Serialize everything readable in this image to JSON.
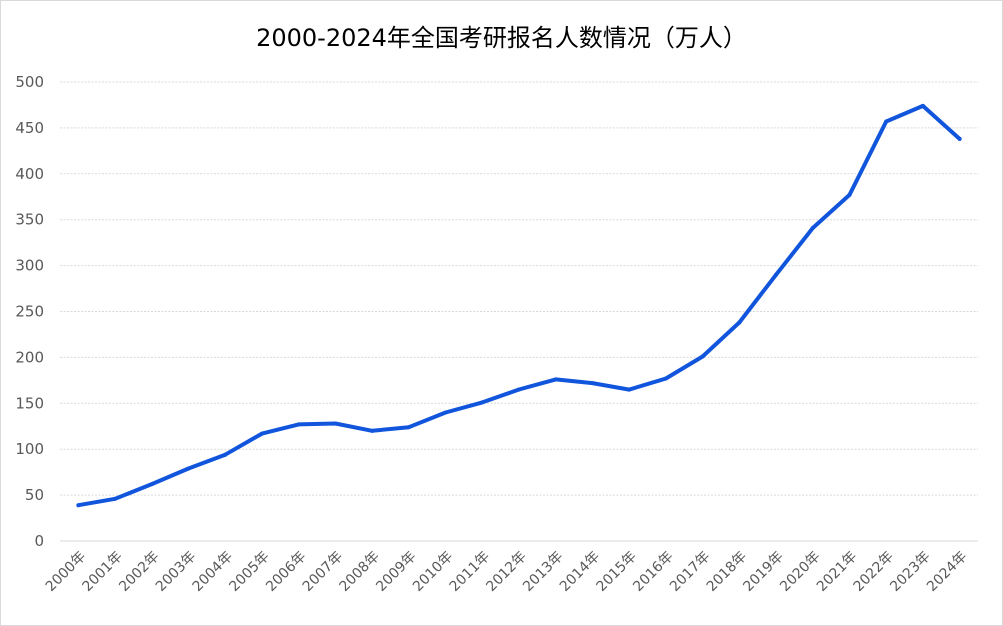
{
  "chart_data": {
    "type": "line",
    "title": "2000-2024年全国考研报名人数情况（万人）",
    "xlabel": "",
    "ylabel": "",
    "categories": [
      "2000年",
      "2001年",
      "2002年",
      "2003年",
      "2004年",
      "2005年",
      "2006年",
      "2007年",
      "2008年",
      "2009年",
      "2010年",
      "2011年",
      "2012年",
      "2013年",
      "2014年",
      "2015年",
      "2016年",
      "2017年",
      "2018年",
      "2019年",
      "2020年",
      "2021年",
      "2022年",
      "2023年",
      "2024年"
    ],
    "series": [
      {
        "values": [
          39,
          46,
          62,
          79,
          94,
          117,
          127,
          128,
          120,
          124,
          140,
          151,
          165,
          176,
          172,
          164.9,
          177,
          201,
          238,
          290,
          341,
          377,
          457,
          474,
          438
        ]
      }
    ],
    "ylim": [
      0,
      500
    ],
    "yticks": [
      0,
      50,
      100,
      150,
      200,
      250,
      300,
      350,
      400,
      450,
      500
    ],
    "grid": true,
    "legend": "none",
    "line_color": "#1155dd"
  }
}
